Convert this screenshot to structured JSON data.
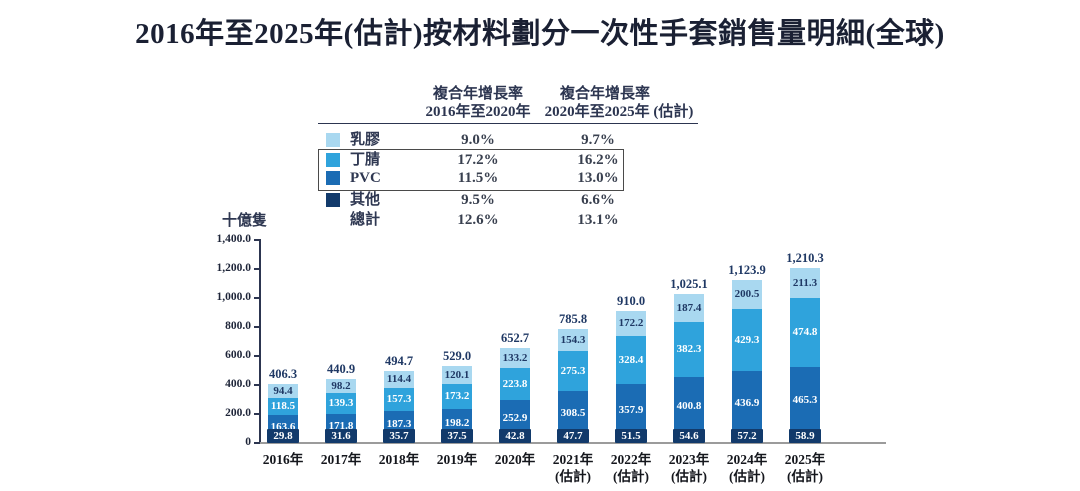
{
  "title": "2016年至2025年(估計)按材料劃分一次性手套銷售量明細(全球)",
  "cagr_table": {
    "col1_header_line1": "複合年增長率",
    "col1_header_line2": "2016年至2020年",
    "col2_header_line1": "複合年增長率",
    "col2_header_line2": "2020年至2025年 (估計)",
    "rows": [
      {
        "label": "乳膠",
        "color": "#a9d8f0",
        "cagr_2016_2020": "9.0%",
        "cagr_2020_2025": "9.7%"
      },
      {
        "label": "丁腈",
        "color": "#2fa3dc",
        "cagr_2016_2020": "17.2%",
        "cagr_2020_2025": "16.2%"
      },
      {
        "label": "PVC",
        "color": "#1b6cb4",
        "cagr_2016_2020": "11.5%",
        "cagr_2020_2025": "13.0%"
      },
      {
        "label": "其他",
        "color": "#123a6b",
        "cagr_2016_2020": "9.5%",
        "cagr_2020_2025": "6.6%"
      },
      {
        "label": "總計",
        "color": "",
        "cagr_2016_2020": "12.6%",
        "cagr_2020_2025": "13.1%"
      }
    ]
  },
  "chart_data": {
    "type": "bar",
    "stacked": true,
    "unit_label": "十億隻",
    "ylim": [
      0,
      1400
    ],
    "y_ticks": [
      "1,400.0",
      "1,200.0",
      "1,000.0",
      "800.0",
      "600.0",
      "400.0",
      "200.0",
      "0"
    ],
    "categories": [
      [
        "2016年"
      ],
      [
        "2017年"
      ],
      [
        "2018年"
      ],
      [
        "2019年"
      ],
      [
        "2020年"
      ],
      [
        "2021年",
        "(估計)"
      ],
      [
        "2022年",
        "(估計)"
      ],
      [
        "2023年",
        "(估計)"
      ],
      [
        "2024年",
        "(估計)"
      ],
      [
        "2025年",
        "(估計)"
      ]
    ],
    "series": [
      {
        "name": "其他",
        "color": "#123a6b",
        "label_color": "#ffffff",
        "values": [
          29.8,
          31.6,
          35.7,
          37.5,
          42.8,
          47.7,
          51.5,
          54.6,
          57.2,
          58.9
        ]
      },
      {
        "name": "PVC",
        "color": "#1b6cb4",
        "label_color": "#ffffff",
        "values": [
          163.6,
          171.8,
          187.3,
          198.2,
          252.9,
          308.5,
          357.9,
          400.8,
          436.9,
          465.3
        ]
      },
      {
        "name": "丁腈",
        "color": "#2fa3dc",
        "label_color": "#ffffff",
        "values": [
          118.5,
          139.3,
          157.3,
          173.2,
          223.8,
          275.3,
          328.4,
          382.3,
          429.3,
          474.8
        ]
      },
      {
        "name": "乳膠",
        "color": "#a9d8f0",
        "label_color": "#1f3864",
        "values": [
          94.4,
          98.2,
          114.4,
          120.1,
          133.2,
          154.3,
          172.2,
          187.4,
          200.5,
          211.3
        ]
      }
    ],
    "totals": [
      "406.3",
      "440.9",
      "494.7",
      "529.0",
      "652.7",
      "785.8",
      "910.0",
      "1,025.1",
      "1,123.9",
      "1,210.3"
    ]
  }
}
